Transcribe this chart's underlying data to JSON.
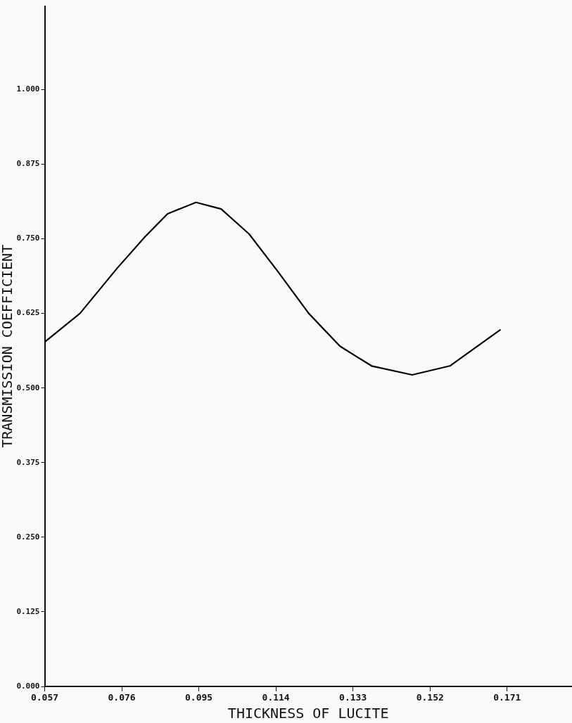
{
  "chart_data": {
    "type": "line",
    "xlabel": "THICKNESS OF LUCITE",
    "ylabel": "TRANSMISSION COEFFICIENT",
    "x": [
      0.057,
      0.0657,
      0.0749,
      0.0818,
      0.0873,
      0.0943,
      0.1005,
      0.1074,
      0.1144,
      0.1221,
      0.1298,
      0.1376,
      0.1476,
      0.1569,
      0.1694
    ],
    "series": [
      {
        "color": "#000000",
        "values": [
          0.577,
          0.625,
          0.701,
          0.754,
          0.792,
          0.811,
          0.8,
          0.758,
          0.696,
          0.625,
          0.57,
          0.537,
          0.522,
          0.537,
          0.598
        ]
      }
    ],
    "xlim": [
      0.057,
      0.187
    ],
    "xticks": [
      0.057,
      0.076,
      0.095,
      0.114,
      0.133,
      0.152,
      0.171
    ],
    "ylim": [
      0,
      1.14
    ],
    "yticks": [
      {
        "value": 0,
        "label": "0.000"
      },
      0.125,
      {
        "value": 0.25,
        "label": "0.250"
      },
      0.375,
      {
        "value": 0.5,
        "label": "0.500"
      },
      0.625,
      {
        "value": 0.75,
        "label": "0.750"
      },
      0.875,
      {
        "value": 1,
        "label": "1.000"
      }
    ],
    "grid": false,
    "legend": false,
    "marker": "none",
    "line_style": "solid"
  }
}
